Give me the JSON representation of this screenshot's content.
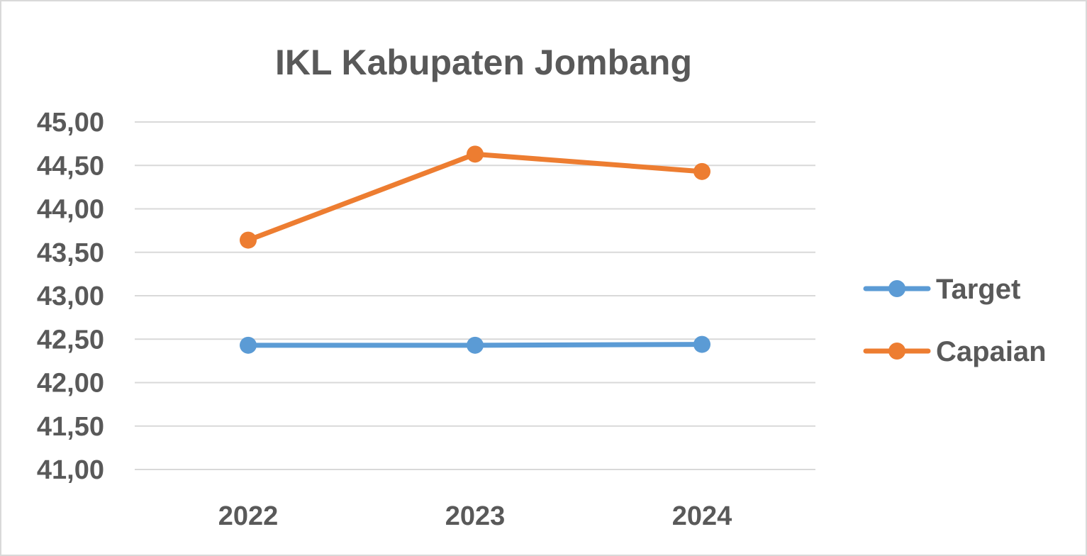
{
  "chart_data": {
    "type": "line",
    "title": "IKL Kabupaten Jombang",
    "xlabel": "",
    "ylabel": "",
    "categories": [
      "2022",
      "2023",
      "2024"
    ],
    "ylim": [
      41.0,
      45.0
    ],
    "yticks": [
      41.0,
      41.5,
      42.0,
      42.5,
      43.0,
      43.5,
      44.0,
      44.5,
      45.0
    ],
    "ytick_labels": [
      "41,00",
      "41,50",
      "42,00",
      "42,50",
      "43,00",
      "43,50",
      "44,00",
      "44,50",
      "45,00"
    ],
    "grid": true,
    "legend_position": "right",
    "series": [
      {
        "name": "Target",
        "values": [
          42.43,
          42.43,
          42.44
        ],
        "color": "#5b9bd5"
      },
      {
        "name": "Capaian",
        "values": [
          43.64,
          44.63,
          44.43
        ],
        "color": "#ed7d31"
      }
    ]
  }
}
